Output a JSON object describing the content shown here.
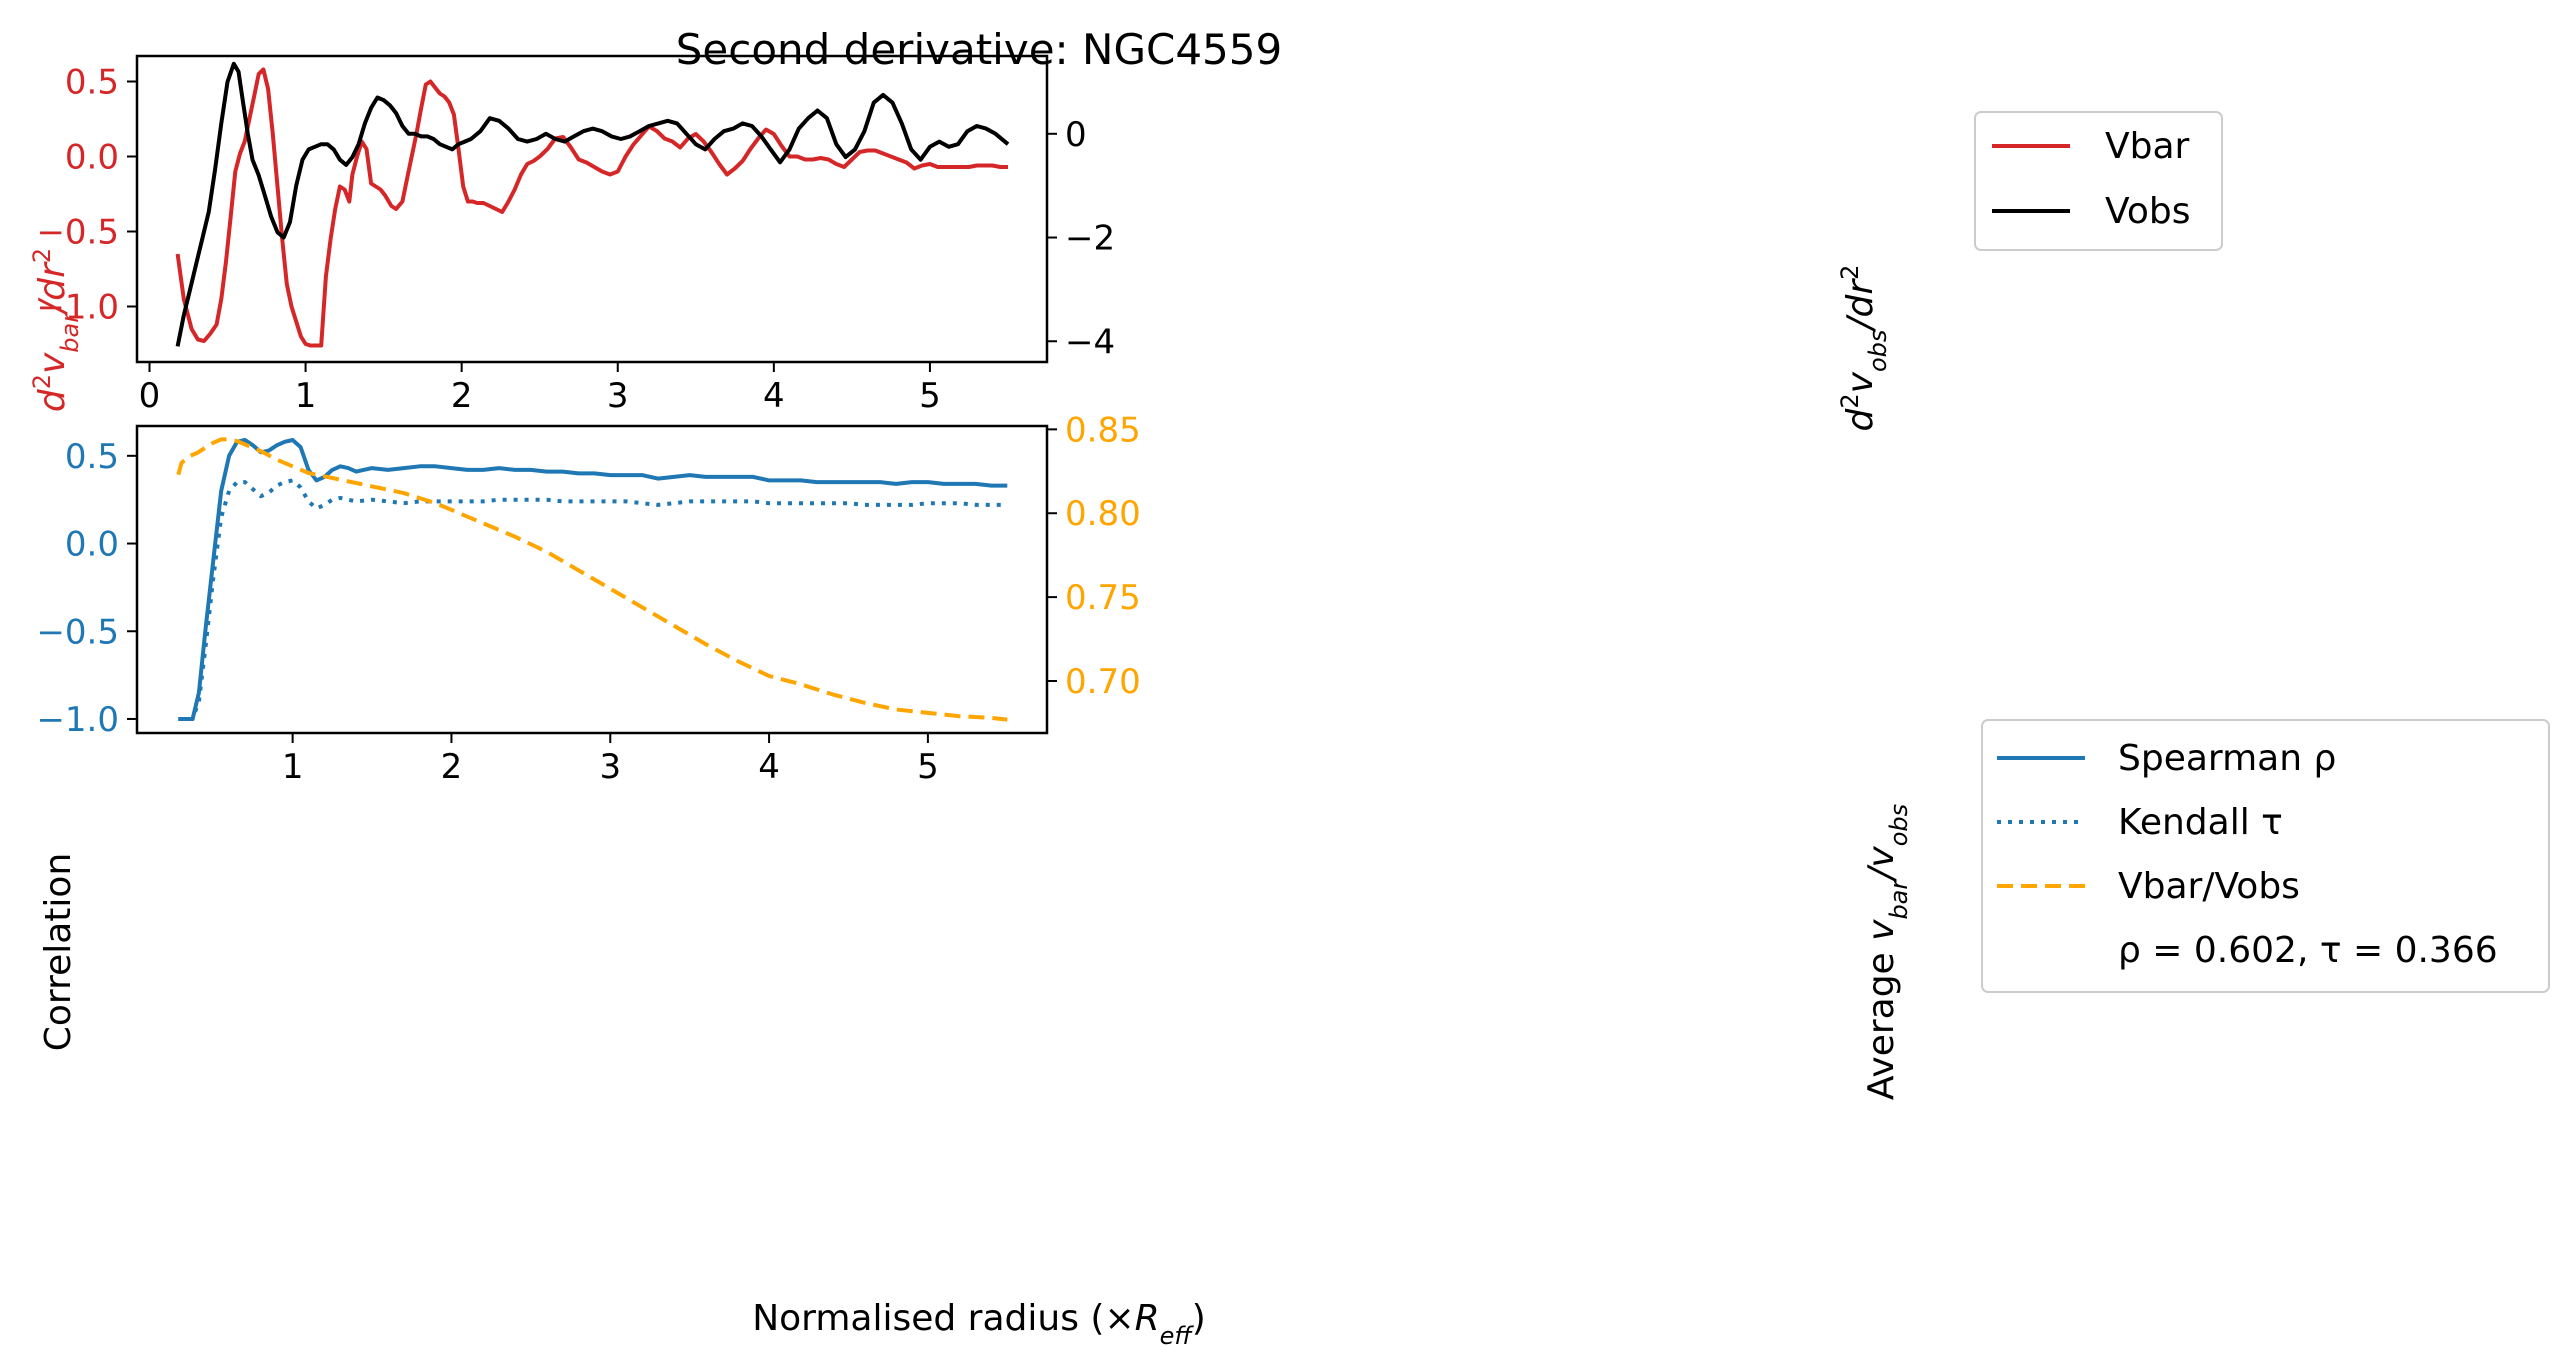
{
  "chart_data": [
    {
      "type": "line",
      "title": "Second derivative: NGC4559",
      "xlabel": "",
      "ylabel_left": "d²v_bar/dr²",
      "ylabel_right": "d²v_obs/dr²",
      "xlim": [
        -0.08,
        5.75
      ],
      "ylim_left": [
        -1.37,
        0.67
      ],
      "ylim_right": [
        -4.4,
        1.5
      ],
      "x_ticks": [
        "0",
        "1",
        "2",
        "3",
        "4",
        "5"
      ],
      "y_ticks_left": [
        "0.5",
        "0.0",
        "−0.5",
        "−1.0"
      ],
      "y_ticks_right": [
        "0",
        "−2",
        "−4"
      ],
      "legend": {
        "placement": "outside-right",
        "entries": [
          "Vbar",
          "Vobs"
        ]
      },
      "colors": {
        "Vbar": "#d62728",
        "Vobs": "#000000"
      },
      "series": [
        {
          "name": "Vbar",
          "axis": "left",
          "x": [
            0.18,
            0.22,
            0.27,
            0.31,
            0.35,
            0.39,
            0.43,
            0.46,
            0.49,
            0.52,
            0.55,
            0.58,
            0.61,
            0.64,
            0.67,
            0.7,
            0.73,
            0.76,
            0.79,
            0.82,
            0.85,
            0.88,
            0.91,
            0.94,
            0.97,
            1.0,
            1.03,
            1.06,
            1.1,
            1.13,
            1.16,
            1.19,
            1.22,
            1.25,
            1.28,
            1.3,
            1.33,
            1.36,
            1.39,
            1.42,
            1.45,
            1.48,
            1.51,
            1.55,
            1.58,
            1.62,
            1.65,
            1.68,
            1.71,
            1.74,
            1.77,
            1.8,
            1.83,
            1.86,
            1.89,
            1.92,
            1.95,
            1.98,
            2.01,
            2.04,
            2.07,
            2.1,
            2.14,
            2.18,
            2.22,
            2.26,
            2.3,
            2.34,
            2.38,
            2.42,
            2.46,
            2.5,
            2.55,
            2.6,
            2.65,
            2.7,
            2.75,
            2.8,
            2.85,
            2.9,
            2.95,
            3.0,
            3.05,
            3.1,
            3.15,
            3.2,
            3.25,
            3.3,
            3.35,
            3.4,
            3.45,
            3.5,
            3.55,
            3.6,
            3.65,
            3.7,
            3.75,
            3.8,
            3.85,
            3.9,
            3.95,
            4.0,
            4.05,
            4.1,
            4.15,
            4.2,
            4.25,
            4.3,
            4.35,
            4.4,
            4.45,
            4.5,
            4.55,
            4.6,
            4.65,
            4.7,
            4.75,
            4.8,
            4.85,
            4.9,
            4.95,
            5.0,
            5.05,
            5.1,
            5.15,
            5.2,
            5.25,
            5.3,
            5.35,
            5.4,
            5.45,
            5.5
          ],
          "y": [
            -0.65,
            -0.95,
            -1.15,
            -1.22,
            -1.23,
            -1.18,
            -1.12,
            -0.95,
            -0.7,
            -0.4,
            -0.1,
            0.02,
            0.1,
            0.25,
            0.4,
            0.55,
            0.58,
            0.45,
            0.15,
            -0.2,
            -0.55,
            -0.85,
            -1.0,
            -1.1,
            -1.2,
            -1.25,
            -1.26,
            -1.26,
            -1.26,
            -0.8,
            -0.55,
            -0.35,
            -0.2,
            -0.22,
            -0.3,
            -0.12,
            0.0,
            0.1,
            0.05,
            -0.18,
            -0.2,
            -0.22,
            -0.26,
            -0.33,
            -0.35,
            -0.3,
            -0.15,
            0.0,
            0.15,
            0.32,
            0.48,
            0.5,
            0.46,
            0.42,
            0.4,
            0.36,
            0.28,
            0.05,
            -0.2,
            -0.3,
            -0.3,
            -0.31,
            -0.31,
            -0.33,
            -0.35,
            -0.37,
            -0.3,
            -0.22,
            -0.12,
            -0.05,
            -0.03,
            0.0,
            0.05,
            0.12,
            0.13,
            0.06,
            -0.02,
            -0.04,
            -0.07,
            -0.1,
            -0.12,
            -0.1,
            0.0,
            0.08,
            0.14,
            0.2,
            0.17,
            0.12,
            0.1,
            0.06,
            0.12,
            0.15,
            0.1,
            0.03,
            -0.05,
            -0.12,
            -0.08,
            -0.03,
            0.05,
            0.12,
            0.18,
            0.15,
            0.07,
            0.0,
            0.0,
            -0.02,
            -0.02,
            -0.01,
            -0.02,
            -0.05,
            -0.07,
            -0.02,
            0.03,
            0.04,
            0.04,
            0.02,
            0.0,
            -0.02,
            -0.04,
            -0.08,
            -0.06,
            -0.05,
            -0.07,
            -0.07,
            -0.07,
            -0.07,
            -0.07,
            -0.06,
            -0.06,
            -0.06,
            -0.07,
            -0.07
          ]
        },
        {
          "name": "Vobs",
          "axis": "right",
          "x": [
            0.18,
            0.22,
            0.26,
            0.3,
            0.34,
            0.38,
            0.42,
            0.46,
            0.5,
            0.54,
            0.57,
            0.6,
            0.63,
            0.66,
            0.7,
            0.74,
            0.78,
            0.82,
            0.86,
            0.9,
            0.94,
            0.98,
            1.02,
            1.06,
            1.1,
            1.14,
            1.18,
            1.22,
            1.26,
            1.3,
            1.34,
            1.38,
            1.42,
            1.46,
            1.5,
            1.54,
            1.58,
            1.62,
            1.66,
            1.7,
            1.74,
            1.78,
            1.82,
            1.86,
            1.9,
            1.94,
            1.98,
            2.02,
            2.06,
            2.12,
            2.18,
            2.24,
            2.3,
            2.36,
            2.42,
            2.48,
            2.54,
            2.6,
            2.66,
            2.72,
            2.78,
            2.84,
            2.9,
            2.96,
            3.02,
            3.08,
            3.14,
            3.2,
            3.26,
            3.32,
            3.38,
            3.44,
            3.5,
            3.56,
            3.62,
            3.68,
            3.74,
            3.8,
            3.86,
            3.92,
            3.98,
            4.04,
            4.1,
            4.16,
            4.22,
            4.28,
            4.34,
            4.4,
            4.46,
            4.52,
            4.58,
            4.64,
            4.7,
            4.76,
            4.82,
            4.88,
            4.94,
            5.0,
            5.06,
            5.12,
            5.18,
            5.24,
            5.3,
            5.36,
            5.42,
            5.5
          ],
          "y": [
            -4.1,
            -3.5,
            -3.0,
            -2.5,
            -2.0,
            -1.5,
            -0.7,
            0.2,
            1.0,
            1.35,
            1.2,
            0.6,
            0.0,
            -0.5,
            -0.8,
            -1.2,
            -1.6,
            -1.9,
            -2.0,
            -1.7,
            -1.0,
            -0.5,
            -0.3,
            -0.25,
            -0.2,
            -0.2,
            -0.3,
            -0.5,
            -0.6,
            -0.45,
            -0.2,
            0.2,
            0.5,
            0.7,
            0.65,
            0.55,
            0.4,
            0.15,
            0.0,
            0.0,
            -0.05,
            -0.05,
            -0.1,
            -0.2,
            -0.25,
            -0.3,
            -0.2,
            -0.15,
            -0.1,
            0.05,
            0.3,
            0.25,
            0.1,
            -0.1,
            -0.15,
            -0.1,
            0.0,
            -0.1,
            -0.15,
            -0.05,
            0.05,
            0.1,
            0.05,
            -0.05,
            -0.1,
            -0.05,
            0.05,
            0.15,
            0.2,
            0.25,
            0.2,
            0.0,
            -0.2,
            -0.3,
            -0.1,
            0.05,
            0.1,
            0.2,
            0.15,
            -0.05,
            -0.3,
            -0.55,
            -0.3,
            0.1,
            0.3,
            0.45,
            0.3,
            -0.2,
            -0.45,
            -0.3,
            0.05,
            0.6,
            0.75,
            0.6,
            0.2,
            -0.3,
            -0.5,
            -0.25,
            -0.15,
            -0.25,
            -0.2,
            0.05,
            0.15,
            0.1,
            0.0,
            -0.2
          ]
        }
      ]
    },
    {
      "type": "line",
      "title": "",
      "xlabel": "Normalised radius (×R_eff)",
      "ylabel_left": "Correlation",
      "ylabel_right": "Average v_bar/v_obs",
      "xlim": [
        0.02,
        5.75
      ],
      "ylim_left": [
        -1.08,
        0.67
      ],
      "ylim_right": [
        0.669,
        0.852
      ],
      "x_ticks": [
        "1",
        "2",
        "3",
        "4",
        "5"
      ],
      "y_ticks_left": [
        "0.5",
        "0.0",
        "−0.5",
        "−1.0"
      ],
      "y_ticks_right": [
        "0.85",
        "0.80",
        "0.75",
        "0.70"
      ],
      "legend": {
        "placement": "outside-right",
        "entries": [
          "Spearman ρ",
          "Kendall τ",
          "Vbar/Vobs"
        ],
        "annotation": "ρ = 0.602, τ = 0.366"
      },
      "colors": {
        "Spearman": "#1f77b4",
        "Kendall": "#1f77b4",
        "Vbar/Vobs": "#ffa500"
      },
      "series": [
        {
          "name": "Spearman ρ",
          "axis": "left",
          "style": "solid",
          "x": [
            0.28,
            0.33,
            0.37,
            0.41,
            0.45,
            0.5,
            0.55,
            0.6,
            0.65,
            0.7,
            0.75,
            0.8,
            0.85,
            0.9,
            0.95,
            1.0,
            1.05,
            1.1,
            1.15,
            1.2,
            1.25,
            1.3,
            1.35,
            1.4,
            1.5,
            1.6,
            1.7,
            1.8,
            1.9,
            2.0,
            2.1,
            2.2,
            2.3,
            2.4,
            2.5,
            2.6,
            2.7,
            2.8,
            2.9,
            3.0,
            3.1,
            3.2,
            3.3,
            3.4,
            3.5,
            3.6,
            3.7,
            3.8,
            3.9,
            4.0,
            4.1,
            4.2,
            4.3,
            4.4,
            4.5,
            4.6,
            4.7,
            4.8,
            4.9,
            5.0,
            5.1,
            5.2,
            5.3,
            5.4,
            5.5
          ],
          "y": [
            -1.0,
            -1.0,
            -1.0,
            -0.85,
            -0.5,
            -0.1,
            0.3,
            0.5,
            0.58,
            0.59,
            0.56,
            0.52,
            0.53,
            0.56,
            0.58,
            0.59,
            0.55,
            0.42,
            0.36,
            0.38,
            0.42,
            0.44,
            0.43,
            0.41,
            0.43,
            0.42,
            0.43,
            0.44,
            0.44,
            0.43,
            0.42,
            0.42,
            0.43,
            0.42,
            0.42,
            0.41,
            0.41,
            0.4,
            0.4,
            0.39,
            0.39,
            0.39,
            0.37,
            0.38,
            0.39,
            0.38,
            0.38,
            0.38,
            0.38,
            0.36,
            0.36,
            0.36,
            0.35,
            0.35,
            0.35,
            0.35,
            0.35,
            0.34,
            0.35,
            0.35,
            0.34,
            0.34,
            0.34,
            0.33,
            0.33
          ]
        },
        {
          "name": "Kendall τ",
          "axis": "left",
          "style": "dotted",
          "x": [
            0.28,
            0.33,
            0.37,
            0.41,
            0.45,
            0.5,
            0.55,
            0.6,
            0.65,
            0.7,
            0.75,
            0.8,
            0.85,
            0.9,
            0.95,
            1.0,
            1.05,
            1.1,
            1.15,
            1.2,
            1.25,
            1.3,
            1.35,
            1.4,
            1.5,
            1.6,
            1.7,
            1.8,
            1.9,
            2.0,
            2.1,
            2.2,
            2.3,
            2.4,
            2.5,
            2.6,
            2.7,
            2.8,
            2.9,
            3.0,
            3.1,
            3.2,
            3.3,
            3.4,
            3.5,
            3.6,
            3.7,
            3.8,
            3.9,
            4.0,
            4.1,
            4.2,
            4.3,
            4.4,
            4.5,
            4.6,
            4.7,
            4.8,
            4.9,
            5.0,
            5.1,
            5.2,
            5.3,
            5.4,
            5.5
          ],
          "y": [
            -1.0,
            -1.0,
            -1.0,
            -0.9,
            -0.6,
            -0.2,
            0.15,
            0.3,
            0.35,
            0.35,
            0.31,
            0.27,
            0.29,
            0.33,
            0.35,
            0.36,
            0.32,
            0.24,
            0.2,
            0.22,
            0.25,
            0.26,
            0.25,
            0.24,
            0.25,
            0.24,
            0.23,
            0.24,
            0.24,
            0.24,
            0.24,
            0.24,
            0.25,
            0.25,
            0.25,
            0.25,
            0.24,
            0.24,
            0.24,
            0.24,
            0.24,
            0.23,
            0.22,
            0.23,
            0.24,
            0.24,
            0.24,
            0.24,
            0.24,
            0.23,
            0.23,
            0.23,
            0.23,
            0.23,
            0.23,
            0.22,
            0.22,
            0.22,
            0.22,
            0.23,
            0.23,
            0.23,
            0.22,
            0.22,
            0.22
          ]
        },
        {
          "name": "Vbar/Vobs",
          "axis": "right",
          "style": "dashed",
          "x": [
            0.28,
            0.3,
            0.35,
            0.4,
            0.45,
            0.5,
            0.55,
            0.6,
            0.65,
            0.7,
            0.8,
            0.9,
            1.0,
            1.1,
            1.2,
            1.3,
            1.4,
            1.5,
            1.6,
            1.7,
            1.8,
            1.9,
            2.0,
            2.2,
            2.4,
            2.6,
            2.8,
            3.0,
            3.2,
            3.4,
            3.6,
            3.8,
            4.0,
            4.2,
            4.4,
            4.6,
            4.8,
            5.0,
            5.2,
            5.4,
            5.5
          ],
          "y": [
            0.823,
            0.83,
            0.834,
            0.836,
            0.839,
            0.842,
            0.844,
            0.844,
            0.843,
            0.841,
            0.837,
            0.832,
            0.828,
            0.824,
            0.822,
            0.82,
            0.818,
            0.816,
            0.814,
            0.812,
            0.809,
            0.806,
            0.802,
            0.794,
            0.786,
            0.777,
            0.766,
            0.755,
            0.744,
            0.733,
            0.722,
            0.712,
            0.703,
            0.698,
            0.692,
            0.687,
            0.683,
            0.681,
            0.679,
            0.678,
            0.677
          ]
        }
      ]
    }
  ]
}
